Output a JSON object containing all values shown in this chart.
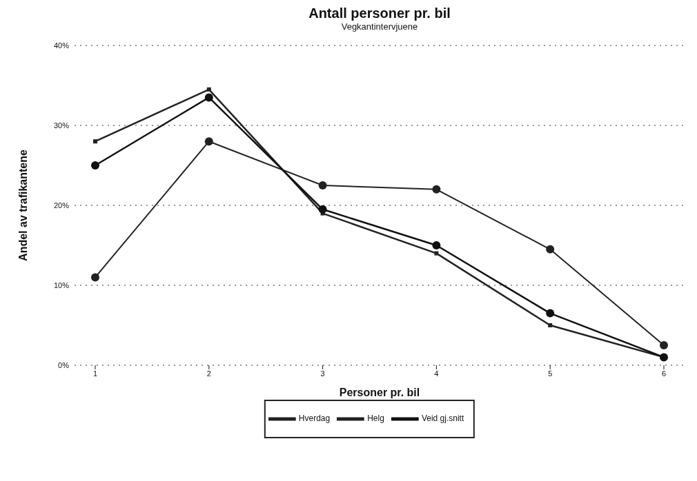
{
  "chart_data": {
    "type": "line",
    "title": "Antall personer pr. bil",
    "subtitle": "Vegkantintervjuene",
    "xlabel": "Personer pr. bil",
    "ylabel": "Andel av trafikantene",
    "categories": [
      "1",
      "2",
      "3",
      "4",
      "5",
      "6"
    ],
    "series": [
      {
        "name": "Hverdag",
        "color": "#222222",
        "marker": "square",
        "values": [
          28,
          34.5,
          19,
          14,
          5,
          1
        ]
      },
      {
        "name": "Helg",
        "color": "#222222",
        "marker": "circle",
        "values": [
          11,
          28,
          22.5,
          22,
          14.5,
          2.5
        ]
      },
      {
        "name": "Veid gj.snitt",
        "color": "#111111",
        "marker": "circle",
        "values": [
          25,
          33.5,
          19.5,
          15,
          6.5,
          1
        ]
      }
    ],
    "ylim": [
      0,
      40
    ],
    "yticks": [
      {
        "value": 0,
        "label": "0%"
      },
      {
        "value": 10,
        "label": "10%"
      },
      {
        "value": 20,
        "label": "20%"
      },
      {
        "value": 30,
        "label": "30%"
      },
      {
        "value": 40,
        "label": "40%"
      }
    ],
    "grid": "y",
    "legend": "bottom",
    "line_style": "solid"
  }
}
